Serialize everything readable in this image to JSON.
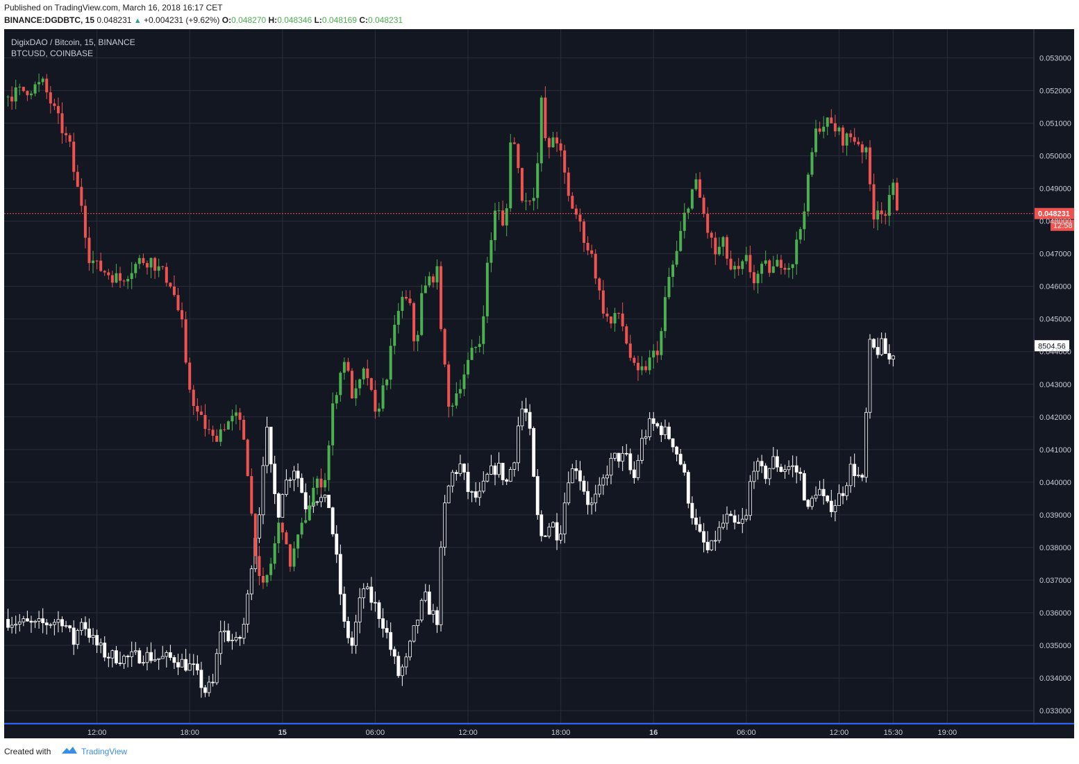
{
  "header": {
    "published": "Published on TradingView.com, March 16, 2018 16:17 CET",
    "symbol_label": "BINANCE:DGDBTC, 15",
    "last": "0.048231",
    "change": "+0.004231 (+9.62%)",
    "o_label": "O:",
    "o_value": "0.048270",
    "h_label": "H:",
    "h_value": "0.048346",
    "l_label": "L:",
    "l_value": "0.048169",
    "c_label": "C:",
    "c_value": "0.048231"
  },
  "legend": {
    "main": "DigixDAO / Bitcoin, 15, BINANCE",
    "overlay": "BTCUSD, COINBASE"
  },
  "footer": {
    "created": "Created with",
    "brand": "TradingView"
  },
  "colors": {
    "background": "#131722",
    "grid": "#2a2e39",
    "up": "#4caf50",
    "down": "#ef5350",
    "overlay": "#ffffff",
    "last_price": "#ef5350",
    "axis_text": "#c9ccd3"
  },
  "chart_data": {
    "type": "candlestick",
    "timeframe": "15",
    "y_axis": {
      "position": "right",
      "ticks": [
        "0.053000",
        "0.052000",
        "0.051000",
        "0.050000",
        "0.049000",
        "0.048000",
        "0.047000",
        "0.046000",
        "0.045000",
        "0.044000",
        "0.043000",
        "0.042000",
        "0.041000",
        "0.040000",
        "0.039000",
        "0.038000",
        "0.037000",
        "0.036000",
        "0.035000",
        "0.034000",
        "0.033000"
      ],
      "range": [
        0.03262,
        0.05388
      ]
    },
    "x_axis": {
      "ticks": [
        "12:00",
        "18:00",
        "15",
        "06:00",
        "12:00",
        "18:00",
        "16",
        "06:00",
        "12:00",
        "15:30",
        "19:00"
      ],
      "tick_hours": [
        12,
        18,
        24,
        30,
        36,
        42,
        48,
        54,
        60,
        63.5,
        67
      ],
      "range_hours": [
        6.0,
        72.6
      ]
    },
    "last_price": {
      "value": 0.048231,
      "label": "0.048231",
      "countdown": "12:58"
    },
    "overlay_label": "8504.56",
    "series": [
      {
        "name": "DigixDAO / Bitcoin, 15, BINANCE",
        "style": "candles",
        "anchors": [
          [
            6.0,
            0.0518
          ],
          [
            8.5,
            0.0522
          ],
          [
            10.3,
            0.0502
          ],
          [
            10.6,
            0.0492
          ],
          [
            11.1,
            0.0484
          ],
          [
            11.4,
            0.047
          ],
          [
            12.0,
            0.0466
          ],
          [
            13.5,
            0.0462
          ],
          [
            14.8,
            0.0468
          ],
          [
            15.5,
            0.0468
          ],
          [
            16.8,
            0.0461
          ],
          [
            17.5,
            0.0448
          ],
          [
            17.8,
            0.0432
          ],
          [
            18.5,
            0.0421
          ],
          [
            19.5,
            0.0413
          ],
          [
            20.3,
            0.0418
          ],
          [
            21.1,
            0.042
          ],
          [
            21.6,
            0.0412
          ],
          [
            22.0,
            0.039
          ],
          [
            22.6,
            0.0365
          ],
          [
            23.2,
            0.0374
          ],
          [
            23.9,
            0.039
          ],
          [
            24.4,
            0.0374
          ],
          [
            25.4,
            0.0388
          ],
          [
            26.0,
            0.0398
          ],
          [
            26.8,
            0.0402
          ],
          [
            27.3,
            0.0425
          ],
          [
            28.0,
            0.0438
          ],
          [
            28.6,
            0.0425
          ],
          [
            29.4,
            0.0435
          ],
          [
            30.0,
            0.042
          ],
          [
            30.7,
            0.0432
          ],
          [
            31.2,
            0.0445
          ],
          [
            31.6,
            0.0456
          ],
          [
            32.2,
            0.0455
          ],
          [
            32.6,
            0.044
          ],
          [
            33.0,
            0.0457
          ],
          [
            33.6,
            0.0463
          ],
          [
            34.0,
            0.0464
          ],
          [
            34.4,
            0.044
          ],
          [
            34.7,
            0.0422
          ],
          [
            35.2,
            0.0427
          ],
          [
            35.7,
            0.0433
          ],
          [
            36.3,
            0.044
          ],
          [
            36.9,
            0.0444
          ],
          [
            37.1,
            0.0462
          ],
          [
            37.4,
            0.047
          ],
          [
            37.8,
            0.0486
          ],
          [
            38.4,
            0.0475
          ],
          [
            38.8,
            0.051
          ],
          [
            39.2,
            0.0497
          ],
          [
            39.6,
            0.0485
          ],
          [
            40.4,
            0.049
          ],
          [
            40.8,
            0.052
          ],
          [
            41.1,
            0.0498
          ],
          [
            41.6,
            0.0508
          ],
          [
            42.0,
            0.05
          ],
          [
            42.5,
            0.0487
          ],
          [
            43.0,
            0.0482
          ],
          [
            43.5,
            0.0475
          ],
          [
            44.1,
            0.0468
          ],
          [
            44.6,
            0.0455
          ],
          [
            45.2,
            0.0448
          ],
          [
            45.8,
            0.0452
          ],
          [
            46.4,
            0.044
          ],
          [
            46.9,
            0.0432
          ],
          [
            47.6,
            0.0436
          ],
          [
            48.4,
            0.0442
          ],
          [
            48.9,
            0.0461
          ],
          [
            49.5,
            0.047
          ],
          [
            50.1,
            0.0484
          ],
          [
            50.7,
            0.0492
          ],
          [
            51.1,
            0.0485
          ],
          [
            51.5,
            0.0477
          ],
          [
            52.0,
            0.047
          ],
          [
            52.5,
            0.0473
          ],
          [
            53.0,
            0.0465
          ],
          [
            53.5,
            0.0464
          ],
          [
            54.0,
            0.0468
          ],
          [
            54.5,
            0.0462
          ],
          [
            55.2,
            0.0466
          ],
          [
            55.7,
            0.0465
          ],
          [
            56.3,
            0.0468
          ],
          [
            56.9,
            0.0466
          ],
          [
            57.5,
            0.0478
          ],
          [
            58.0,
            0.0492
          ],
          [
            58.4,
            0.0506
          ],
          [
            58.8,
            0.051
          ],
          [
            59.3,
            0.051
          ],
          [
            59.8,
            0.0508
          ],
          [
            60.3,
            0.0505
          ],
          [
            60.8,
            0.0506
          ],
          [
            61.3,
            0.0504
          ],
          [
            61.8,
            0.05
          ],
          [
            62.2,
            0.0482
          ],
          [
            62.6,
            0.0485
          ],
          [
            63.0,
            0.0482
          ],
          [
            63.5,
            0.049
          ],
          [
            63.9,
            0.0482
          ]
        ]
      },
      {
        "name": "BTCUSD, COINBASE",
        "style": "hollow candles (overlay)",
        "anchors": [
          [
            6.0,
            0.0358
          ],
          [
            8.0,
            0.0356
          ],
          [
            9.8,
            0.0358
          ],
          [
            10.5,
            0.0351
          ],
          [
            11.0,
            0.0358
          ],
          [
            11.8,
            0.0351
          ],
          [
            12.6,
            0.0347
          ],
          [
            13.9,
            0.0346
          ],
          [
            15.0,
            0.0347
          ],
          [
            16.0,
            0.0346
          ],
          [
            17.0,
            0.0346
          ],
          [
            18.2,
            0.0343
          ],
          [
            19.0,
            0.0336
          ],
          [
            19.5,
            0.0338
          ],
          [
            20.0,
            0.0355
          ],
          [
            21.1,
            0.035
          ],
          [
            21.6,
            0.0358
          ],
          [
            22.1,
            0.038
          ],
          [
            22.6,
            0.0394
          ],
          [
            22.9,
            0.042
          ],
          [
            23.2,
            0.0405
          ],
          [
            23.7,
            0.039
          ],
          [
            24.0,
            0.0398
          ],
          [
            24.8,
            0.0405
          ],
          [
            25.5,
            0.0393
          ],
          [
            26.1,
            0.0396
          ],
          [
            27.0,
            0.0393
          ],
          [
            27.5,
            0.0376
          ],
          [
            28.0,
            0.0356
          ],
          [
            28.5,
            0.035
          ],
          [
            29.2,
            0.0368
          ],
          [
            30.0,
            0.0362
          ],
          [
            30.6,
            0.0356
          ],
          [
            31.0,
            0.0349
          ],
          [
            31.5,
            0.0341
          ],
          [
            32.0,
            0.0345
          ],
          [
            32.6,
            0.0356
          ],
          [
            33.2,
            0.0365
          ],
          [
            33.6,
            0.036
          ],
          [
            34.0,
            0.0358
          ],
          [
            34.4,
            0.039
          ],
          [
            34.9,
            0.0402
          ],
          [
            35.5,
            0.0405
          ],
          [
            36.1,
            0.0396
          ],
          [
            36.7,
            0.0395
          ],
          [
            37.3,
            0.0402
          ],
          [
            37.9,
            0.0405
          ],
          [
            38.5,
            0.04
          ],
          [
            39.0,
            0.0408
          ],
          [
            39.4,
            0.0423
          ],
          [
            39.9,
            0.042
          ],
          [
            40.4,
            0.0392
          ],
          [
            40.7,
            0.0383
          ],
          [
            41.4,
            0.0388
          ],
          [
            41.9,
            0.0383
          ],
          [
            42.5,
            0.0402
          ],
          [
            43.0,
            0.0405
          ],
          [
            43.5,
            0.0398
          ],
          [
            43.9,
            0.0392
          ],
          [
            44.5,
            0.0397
          ],
          [
            45.1,
            0.0405
          ],
          [
            45.6,
            0.0408
          ],
          [
            46.3,
            0.0407
          ],
          [
            46.7,
            0.04
          ],
          [
            47.2,
            0.0412
          ],
          [
            47.8,
            0.0418
          ],
          [
            48.6,
            0.0416
          ],
          [
            49.2,
            0.0413
          ],
          [
            49.9,
            0.0404
          ],
          [
            50.3,
            0.0394
          ],
          [
            50.8,
            0.0385
          ],
          [
            51.6,
            0.0378
          ],
          [
            52.0,
            0.0383
          ],
          [
            52.7,
            0.0389
          ],
          [
            53.4,
            0.0386
          ],
          [
            54.0,
            0.0389
          ],
          [
            54.4,
            0.0406
          ],
          [
            55.2,
            0.0402
          ],
          [
            55.8,
            0.0407
          ],
          [
            56.2,
            0.0404
          ],
          [
            56.9,
            0.0405
          ],
          [
            57.5,
            0.0402
          ],
          [
            58.0,
            0.0391
          ],
          [
            58.6,
            0.0399
          ],
          [
            59.2,
            0.0392
          ],
          [
            59.8,
            0.0394
          ],
          [
            60.3,
            0.0398
          ],
          [
            60.8,
            0.0405
          ],
          [
            61.2,
            0.0402
          ],
          [
            61.6,
            0.0399
          ],
          [
            61.9,
            0.0442
          ],
          [
            62.4,
            0.044
          ],
          [
            62.8,
            0.0442
          ],
          [
            63.2,
            0.0437
          ],
          [
            63.7,
            0.0442
          ]
        ]
      }
    ]
  }
}
